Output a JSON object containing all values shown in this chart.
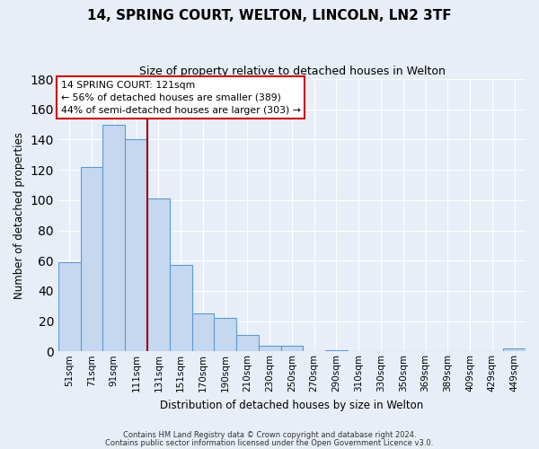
{
  "title": "14, SPRING COURT, WELTON, LINCOLN, LN2 3TF",
  "subtitle": "Size of property relative to detached houses in Welton",
  "xlabel": "Distribution of detached houses by size in Welton",
  "ylabel": "Number of detached properties",
  "bar_labels": [
    "51sqm",
    "71sqm",
    "91sqm",
    "111sqm",
    "131sqm",
    "151sqm",
    "170sqm",
    "190sqm",
    "210sqm",
    "230sqm",
    "250sqm",
    "270sqm",
    "290sqm",
    "310sqm",
    "330sqm",
    "350sqm",
    "369sqm",
    "389sqm",
    "409sqm",
    "429sqm",
    "449sqm"
  ],
  "bar_values": [
    59,
    122,
    150,
    140,
    101,
    57,
    25,
    22,
    11,
    4,
    4,
    0,
    1,
    0,
    0,
    0,
    0,
    0,
    0,
    0,
    2
  ],
  "bar_color": "#c5d8f0",
  "bar_edge_color": "#5b9bd5",
  "ylim": [
    0,
    180
  ],
  "yticks": [
    0,
    20,
    40,
    60,
    80,
    100,
    120,
    140,
    160,
    180
  ],
  "vline_color": "#990000",
  "annotation_title": "14 SPRING COURT: 121sqm",
  "annotation_line1": "← 56% of detached houses are smaller (389)",
  "annotation_line2": "44% of semi-detached houses are larger (303) →",
  "annotation_box_facecolor": "#ffffff",
  "annotation_box_edgecolor": "#cc0000",
  "footer1": "Contains HM Land Registry data © Crown copyright and database right 2024.",
  "footer2": "Contains public sector information licensed under the Open Government Licence v3.0.",
  "background_color": "#e8eef7",
  "grid_color": "#ffffff"
}
